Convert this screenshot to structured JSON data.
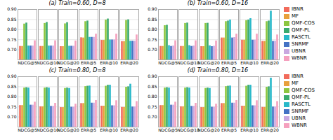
{
  "chart_data": [
    {
      "type": "bar",
      "title": "(a) Train=0.60, D=8",
      "categories": [
        "NDCG@5",
        "NDCG@10",
        "NDCG@20",
        "ERR@5",
        "ERR@10",
        "ERR@20"
      ],
      "series": [
        {
          "name": "IBNR",
          "color": "#f26b5b",
          "values": [
            0.717,
            0.717,
            0.716,
            0.76,
            0.747,
            0.741
          ]
        },
        {
          "name": "MF",
          "color": "#e8a03c",
          "values": [
            0.717,
            0.717,
            0.716,
            0.759,
            0.747,
            0.741
          ]
        },
        {
          "name": "QMF-COS",
          "color": "#8dc63f",
          "values": [
            0.828,
            0.831,
            0.829,
            0.84,
            0.848,
            0.846
          ]
        },
        {
          "name": "QMF-PL",
          "color": "#3aaa6e",
          "values": [
            0.833,
            0.836,
            0.835,
            0.843,
            0.853,
            0.849
          ]
        },
        {
          "name": "RASCTL",
          "color": "#29b9c9",
          "values": [
            0.719,
            0.719,
            0.718,
            0.762,
            0.749,
            0.743
          ]
        },
        {
          "name": "SNRMF",
          "color": "#4472c4",
          "values": [
            0.719,
            0.719,
            0.718,
            0.762,
            0.749,
            0.743
          ]
        },
        {
          "name": "UBNR",
          "color": "#c9a8e0",
          "values": [
            0.719,
            0.719,
            0.718,
            0.762,
            0.749,
            0.743
          ]
        },
        {
          "name": "WBNR",
          "color": "#f5a0be",
          "values": [
            0.745,
            0.745,
            0.744,
            0.778,
            0.778,
            0.774
          ]
        }
      ],
      "ylim": [
        0.65,
        0.9
      ],
      "yticks": [
        {
          "value": 0.7,
          "label": "0.70"
        },
        {
          "value": 0.75,
          "label": "0.75"
        },
        {
          "value": 0.8,
          "label": "0.80"
        },
        {
          "value": 0.85,
          "label": "0.85"
        },
        {
          "value": 0.9,
          "label": "0.90"
        }
      ],
      "grid": true
    },
    {
      "type": "bar",
      "title": "(b) Train=0.60, D=16",
      "categories": [
        "NDCG@5",
        "NDCG@10",
        "NDCG@20",
        "ERR@5",
        "ERR@10",
        "ERR@20"
      ],
      "series": [
        {
          "name": "IBNR",
          "color": "#f26b5b",
          "values": [
            0.717,
            0.717,
            0.716,
            0.759,
            0.748,
            0.742
          ]
        },
        {
          "name": "MF",
          "color": "#e8a03c",
          "values": [
            0.717,
            0.717,
            0.716,
            0.759,
            0.748,
            0.742
          ]
        },
        {
          "name": "QMF-COS",
          "color": "#8dc63f",
          "values": [
            0.82,
            0.831,
            0.831,
            0.84,
            0.845,
            0.84
          ]
        },
        {
          "name": "QMF-PL",
          "color": "#3aaa6e",
          "values": [
            0.822,
            0.833,
            0.832,
            0.843,
            0.848,
            0.843
          ]
        },
        {
          "name": "RASCTL",
          "color": "#29b9c9",
          "values": [
            0.721,
            0.721,
            0.72,
            0.848,
            0.855,
            0.892
          ]
        },
        {
          "name": "SNRMF",
          "color": "#4472c4",
          "values": [
            0.717,
            0.717,
            0.716,
            0.759,
            0.748,
            0.742
          ]
        },
        {
          "name": "UBNR",
          "color": "#c9a8e0",
          "values": [
            0.719,
            0.719,
            0.718,
            0.761,
            0.748,
            0.743
          ]
        },
        {
          "name": "WBNR",
          "color": "#f5a0be",
          "values": [
            0.745,
            0.745,
            0.744,
            0.778,
            0.778,
            0.774
          ]
        }
      ],
      "ylim": [
        0.65,
        0.9
      ],
      "yticks": [
        {
          "value": 0.7,
          "label": "0.70"
        },
        {
          "value": 0.75,
          "label": "0.75"
        },
        {
          "value": 0.8,
          "label": "0.80"
        },
        {
          "value": 0.85,
          "label": "0.85"
        },
        {
          "value": 0.9,
          "label": "0.90"
        }
      ],
      "grid": true,
      "legend": "right"
    },
    {
      "type": "bar",
      "title": "(c) Train=0.80, D=8",
      "categories": [
        "NDCG@5",
        "NDCG@10",
        "NDCG@20",
        "ERR@5",
        "ERR@10",
        "ERR@20"
      ],
      "series": [
        {
          "name": "IBNR",
          "color": "#f26b5b",
          "values": [
            0.757,
            0.751,
            0.747,
            0.767,
            0.754,
            0.748
          ]
        },
        {
          "name": "MF",
          "color": "#e8a03c",
          "values": [
            0.757,
            0.751,
            0.747,
            0.767,
            0.754,
            0.748
          ]
        },
        {
          "name": "QMF-COS",
          "color": "#8dc63f",
          "values": [
            0.844,
            0.844,
            0.842,
            0.851,
            0.853,
            0.848
          ]
        },
        {
          "name": "QMF-PL",
          "color": "#3aaa6e",
          "values": [
            0.846,
            0.846,
            0.844,
            0.853,
            0.858,
            0.85
          ]
        },
        {
          "name": "RASCTL",
          "color": "#29b9c9",
          "values": [
            0.844,
            0.844,
            0.842,
            0.854,
            0.858,
            0.863
          ]
        },
        {
          "name": "SNRMF",
          "color": "#4472c4",
          "values": [
            0.759,
            0.753,
            0.749,
            0.769,
            0.756,
            0.75
          ]
        },
        {
          "name": "UBNR",
          "color": "#c9a8e0",
          "values": [
            0.759,
            0.753,
            0.749,
            0.769,
            0.756,
            0.75
          ]
        },
        {
          "name": "WBNR",
          "color": "#f5a0be",
          "values": [
            0.774,
            0.768,
            0.764,
            0.782,
            0.781,
            0.777
          ]
        }
      ],
      "ylim": [
        0.65,
        0.9
      ],
      "yticks": [
        {
          "value": 0.7,
          "label": "0.70"
        },
        {
          "value": 0.75,
          "label": "0.75"
        },
        {
          "value": 0.8,
          "label": "0.80"
        },
        {
          "value": 0.85,
          "label": "0.85"
        },
        {
          "value": 0.9,
          "label": "0.90"
        }
      ],
      "grid": true
    },
    {
      "type": "bar",
      "title": "(d) Train=0.80, D=16",
      "categories": [
        "NDCG@5",
        "NDCG@10",
        "NDCG@20",
        "ERR@5",
        "ERR@10",
        "ERR@20"
      ],
      "series": [
        {
          "name": "IBNR",
          "color": "#f26b5b",
          "values": [
            0.757,
            0.751,
            0.747,
            0.767,
            0.754,
            0.748
          ]
        },
        {
          "name": "MF",
          "color": "#e8a03c",
          "values": [
            0.757,
            0.751,
            0.747,
            0.767,
            0.754,
            0.748
          ]
        },
        {
          "name": "QMF-COS",
          "color": "#8dc63f",
          "values": [
            0.844,
            0.844,
            0.842,
            0.851,
            0.853,
            0.848
          ]
        },
        {
          "name": "QMF-PL",
          "color": "#3aaa6e",
          "values": [
            0.846,
            0.846,
            0.844,
            0.853,
            0.858,
            0.85
          ]
        },
        {
          "name": "RASCTL",
          "color": "#29b9c9",
          "values": [
            0.844,
            0.844,
            0.842,
            0.854,
            0.858,
            0.893
          ]
        },
        {
          "name": "SNRMF",
          "color": "#4472c4",
          "values": [
            0.759,
            0.753,
            0.749,
            0.769,
            0.756,
            0.75
          ]
        },
        {
          "name": "UBNR",
          "color": "#c9a8e0",
          "values": [
            0.759,
            0.753,
            0.749,
            0.769,
            0.756,
            0.75
          ]
        },
        {
          "name": "WBNR",
          "color": "#f5a0be",
          "values": [
            0.774,
            0.768,
            0.764,
            0.782,
            0.781,
            0.777
          ]
        }
      ],
      "ylim": [
        0.65,
        0.9
      ],
      "yticks": [
        {
          "value": 0.7,
          "label": "0.70"
        },
        {
          "value": 0.75,
          "label": "0.75"
        },
        {
          "value": 0.8,
          "label": "0.80"
        },
        {
          "value": 0.85,
          "label": "0.85"
        },
        {
          "value": 0.9,
          "label": "0.90"
        }
      ],
      "grid": true,
      "legend": "right"
    }
  ]
}
